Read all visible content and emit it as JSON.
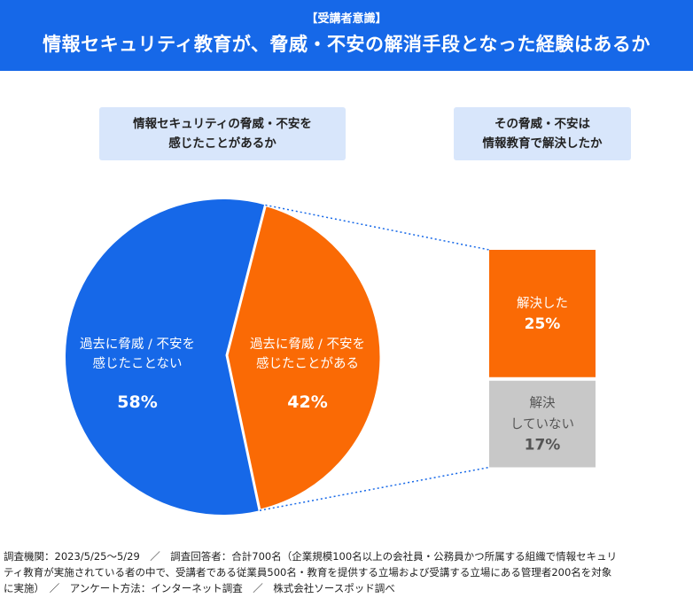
{
  "header": {
    "tag": "【受講者意識】",
    "title": "情報セキュリティ教育が、脅威・不安の解消手段となった経験はあるか"
  },
  "questions": {
    "left": [
      "情報セキュリティの脅威・不安を",
      "感じたことがあるか"
    ],
    "right": [
      "その脅威・不安は",
      "情報教育で解決したか"
    ]
  },
  "chart_data": [
    {
      "type": "pie",
      "slices": [
        {
          "label": [
            "過去に脅威 / 不安を",
            "感じたことない"
          ],
          "value": 58,
          "value_label": "58%",
          "color": "#1668e8"
        },
        {
          "label": [
            "過去に脅威 / 不安を",
            "感じたことがある"
          ],
          "value": 42,
          "value_label": "42%",
          "color": "#fa6a05"
        }
      ]
    },
    {
      "type": "bar",
      "stacked": true,
      "slices": [
        {
          "label": [
            "解決した"
          ],
          "value": 25,
          "value_label": "25%",
          "color": "#fa6a05"
        },
        {
          "label": [
            "解決",
            "していない"
          ],
          "value": 17,
          "value_label": "17%",
          "color": "#c8c8c8"
        }
      ]
    }
  ],
  "footer": {
    "lines": [
      "調査機関：2023/5/25〜5/29　／　調査回答者：合計700名（企業規模100名以上の会社員・公務員かつ所属する組織で情報セキュリ",
      "ティ教育が実施されている者の中で、受講者である従業員500名・教育を提供する立場および受講する立場にある管理者200名を対象",
      "に実施）　／　アンケート方法：インターネット調査　／　株式会社ソースポッド調べ"
    ]
  }
}
